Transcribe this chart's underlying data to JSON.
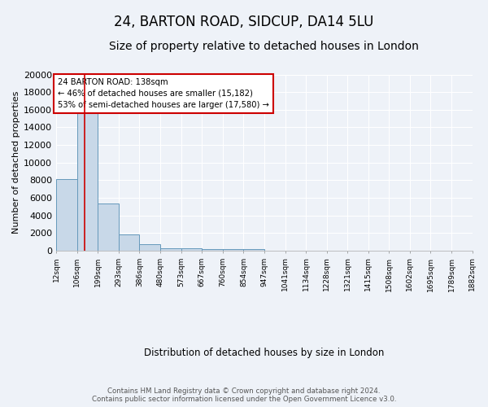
{
  "title1": "24, BARTON ROAD, SIDCUP, DA14 5LU",
  "title2": "Size of property relative to detached houses in London",
  "xlabel": "Distribution of detached houses by size in London",
  "ylabel": "Number of detached properties",
  "bin_labels": [
    "12sqm",
    "106sqm",
    "199sqm",
    "293sqm",
    "386sqm",
    "480sqm",
    "573sqm",
    "667sqm",
    "760sqm",
    "854sqm",
    "947sqm",
    "1041sqm",
    "1134sqm",
    "1228sqm",
    "1321sqm",
    "1415sqm",
    "1508sqm",
    "1602sqm",
    "1695sqm",
    "1789sqm",
    "1882sqm"
  ],
  "bin_edges": [
    12,
    106,
    199,
    293,
    386,
    480,
    573,
    667,
    760,
    854,
    947,
    1041,
    1134,
    1228,
    1321,
    1415,
    1508,
    1602,
    1695,
    1789,
    1882
  ],
  "bar_heights": [
    8100,
    16600,
    5300,
    1850,
    700,
    300,
    230,
    200,
    170,
    130,
    0,
    0,
    0,
    0,
    0,
    0,
    0,
    0,
    0,
    0
  ],
  "bar_color": "#c8d8e8",
  "bar_edge_color": "#6699bb",
  "property_value": 138,
  "red_line_color": "#cc0000",
  "annotation_line1": "24 BARTON ROAD: 138sqm",
  "annotation_line2": "← 46% of detached houses are smaller (15,182)",
  "annotation_line3": "53% of semi-detached houses are larger (17,580) →",
  "annotation_box_color": "#ffffff",
  "annotation_box_edge": "#cc0000",
  "ylim": [
    0,
    20000
  ],
  "yticks": [
    0,
    2000,
    4000,
    6000,
    8000,
    10000,
    12000,
    14000,
    16000,
    18000,
    20000
  ],
  "footer1": "Contains HM Land Registry data © Crown copyright and database right 2024.",
  "footer2": "Contains public sector information licensed under the Open Government Licence v3.0.",
  "bg_color": "#eef2f8",
  "grid_color": "#ffffff",
  "title1_fontsize": 12,
  "title2_fontsize": 10
}
